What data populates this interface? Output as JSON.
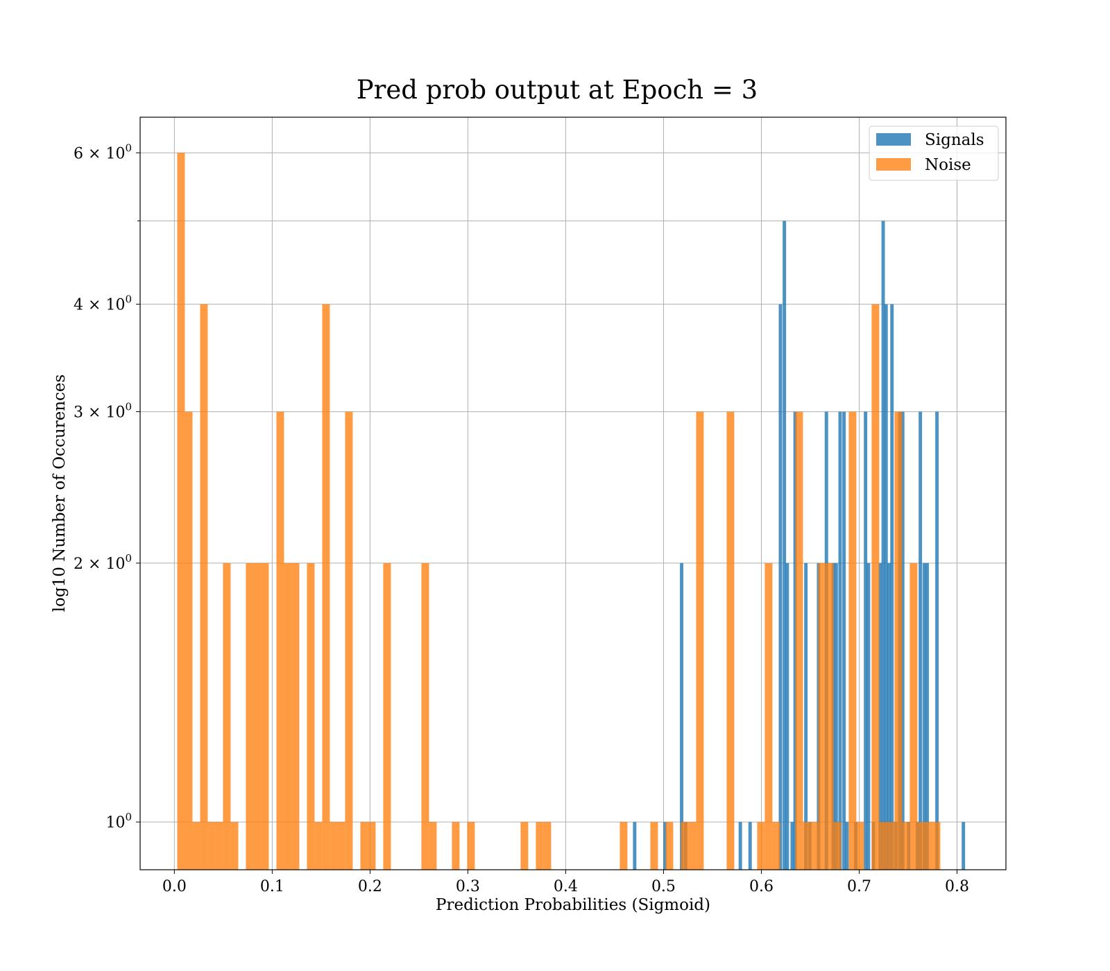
{
  "chart_data": {
    "type": "bar",
    "title": "Pred prob output at Epoch = 3",
    "xlabel": "Prediction Probabilities (Sigmoid)",
    "ylabel": "log10 Number of Occurences",
    "yscale": "log",
    "xlim": [
      -0.035,
      0.85
    ],
    "ylim": [
      0.88,
      6.6
    ],
    "xticks": [
      {
        "value": 0.0,
        "label": "0.0"
      },
      {
        "value": 0.1,
        "label": "0.1"
      },
      {
        "value": 0.2,
        "label": "0.2"
      },
      {
        "value": 0.3,
        "label": "0.3"
      },
      {
        "value": 0.4,
        "label": "0.4"
      },
      {
        "value": 0.5,
        "label": "0.5"
      },
      {
        "value": 0.6,
        "label": "0.6"
      },
      {
        "value": 0.7,
        "label": "0.7"
      },
      {
        "value": 0.8,
        "label": "0.8"
      }
    ],
    "yticks": [
      {
        "value": 1,
        "base": "10",
        "exp": "0"
      },
      {
        "value": 2,
        "base": "2 × 10",
        "exp": "0"
      },
      {
        "value": 3,
        "base": "3 × 10",
        "exp": "0"
      },
      {
        "value": 4,
        "base": "4 × 10",
        "exp": "0"
      },
      {
        "value": 6,
        "base": "6 × 10",
        "exp": "0"
      }
    ],
    "yticks_unlabeled": [
      5
    ],
    "grid": true,
    "legend_position": "top-right",
    "series": [
      {
        "name": "Signals",
        "color": "#1f77b4",
        "bin_width": 0.0035,
        "bins": [
          {
            "x": 0.4705,
            "count": 1
          },
          {
            "x": 0.5015,
            "count": 1
          },
          {
            "x": 0.5185,
            "count": 2
          },
          {
            "x": 0.5225,
            "count": 1
          },
          {
            "x": 0.5785,
            "count": 1
          },
          {
            "x": 0.5885,
            "count": 1
          },
          {
            "x": 0.6195,
            "count": 4
          },
          {
            "x": 0.6235,
            "count": 5
          },
          {
            "x": 0.6265,
            "count": 2
          },
          {
            "x": 0.6315,
            "count": 1
          },
          {
            "x": 0.6345,
            "count": 3
          },
          {
            "x": 0.6455,
            "count": 2
          },
          {
            "x": 0.6495,
            "count": 1
          },
          {
            "x": 0.6585,
            "count": 2
          },
          {
            "x": 0.6665,
            "count": 3
          },
          {
            "x": 0.6735,
            "count": 2
          },
          {
            "x": 0.6765,
            "count": 2
          },
          {
            "x": 0.6805,
            "count": 3
          },
          {
            "x": 0.6845,
            "count": 3
          },
          {
            "x": 0.6875,
            "count": 1
          },
          {
            "x": 0.6965,
            "count": 1
          },
          {
            "x": 0.7065,
            "count": 3
          },
          {
            "x": 0.7095,
            "count": 2
          },
          {
            "x": 0.7145,
            "count": 1
          },
          {
            "x": 0.7215,
            "count": 2
          },
          {
            "x": 0.7245,
            "count": 5
          },
          {
            "x": 0.7275,
            "count": 4
          },
          {
            "x": 0.7305,
            "count": 2
          },
          {
            "x": 0.7335,
            "count": 4
          },
          {
            "x": 0.7375,
            "count": 1
          },
          {
            "x": 0.7415,
            "count": 3
          },
          {
            "x": 0.7445,
            "count": 3
          },
          {
            "x": 0.7505,
            "count": 1
          },
          {
            "x": 0.7595,
            "count": 1
          },
          {
            "x": 0.7625,
            "count": 3
          },
          {
            "x": 0.7665,
            "count": 2
          },
          {
            "x": 0.7695,
            "count": 2
          },
          {
            "x": 0.7795,
            "count": 3
          },
          {
            "x": 0.8065,
            "count": 1
          }
        ]
      },
      {
        "name": "Noise",
        "color": "#ff7f0e",
        "bin_width": 0.0078,
        "bins": [
          {
            "x": 0.0068,
            "count": 6
          },
          {
            "x": 0.0146,
            "count": 3
          },
          {
            "x": 0.0224,
            "count": 1
          },
          {
            "x": 0.0302,
            "count": 4
          },
          {
            "x": 0.038,
            "count": 1
          },
          {
            "x": 0.0458,
            "count": 1
          },
          {
            "x": 0.0536,
            "count": 2
          },
          {
            "x": 0.0614,
            "count": 1
          },
          {
            "x": 0.077,
            "count": 2
          },
          {
            "x": 0.0848,
            "count": 2
          },
          {
            "x": 0.0926,
            "count": 2
          },
          {
            "x": 0.1082,
            "count": 3
          },
          {
            "x": 0.116,
            "count": 2
          },
          {
            "x": 0.1238,
            "count": 2
          },
          {
            "x": 0.1394,
            "count": 2
          },
          {
            "x": 0.1472,
            "count": 1
          },
          {
            "x": 0.155,
            "count": 4
          },
          {
            "x": 0.1628,
            "count": 1
          },
          {
            "x": 0.1706,
            "count": 1
          },
          {
            "x": 0.1784,
            "count": 3
          },
          {
            "x": 0.194,
            "count": 1
          },
          {
            "x": 0.2018,
            "count": 1
          },
          {
            "x": 0.2174,
            "count": 2
          },
          {
            "x": 0.2564,
            "count": 2
          },
          {
            "x": 0.2642,
            "count": 1
          },
          {
            "x": 0.2876,
            "count": 1
          },
          {
            "x": 0.3032,
            "count": 1
          },
          {
            "x": 0.3578,
            "count": 1
          },
          {
            "x": 0.3734,
            "count": 1
          },
          {
            "x": 0.3812,
            "count": 1
          },
          {
            "x": 0.4592,
            "count": 1
          },
          {
            "x": 0.4904,
            "count": 1
          },
          {
            "x": 0.506,
            "count": 1
          },
          {
            "x": 0.5216,
            "count": 1
          },
          {
            "x": 0.5294,
            "count": 1
          },
          {
            "x": 0.5372,
            "count": 3
          },
          {
            "x": 0.5684,
            "count": 3
          },
          {
            "x": 0.5996,
            "count": 1
          },
          {
            "x": 0.6074,
            "count": 2
          },
          {
            "x": 0.6152,
            "count": 1
          },
          {
            "x": 0.6386,
            "count": 3
          },
          {
            "x": 0.6464,
            "count": 1
          },
          {
            "x": 0.6542,
            "count": 1
          },
          {
            "x": 0.662,
            "count": 2
          },
          {
            "x": 0.6698,
            "count": 2
          },
          {
            "x": 0.6776,
            "count": 1
          },
          {
            "x": 0.6932,
            "count": 3
          },
          {
            "x": 0.701,
            "count": 1
          },
          {
            "x": 0.7166,
            "count": 4
          },
          {
            "x": 0.7244,
            "count": 1
          },
          {
            "x": 0.7322,
            "count": 1
          },
          {
            "x": 0.74,
            "count": 3
          },
          {
            "x": 0.7478,
            "count": 1
          },
          {
            "x": 0.7556,
            "count": 2
          },
          {
            "x": 0.7634,
            "count": 1
          },
          {
            "x": 0.7712,
            "count": 1
          },
          {
            "x": 0.779,
            "count": 1
          }
        ]
      }
    ]
  }
}
